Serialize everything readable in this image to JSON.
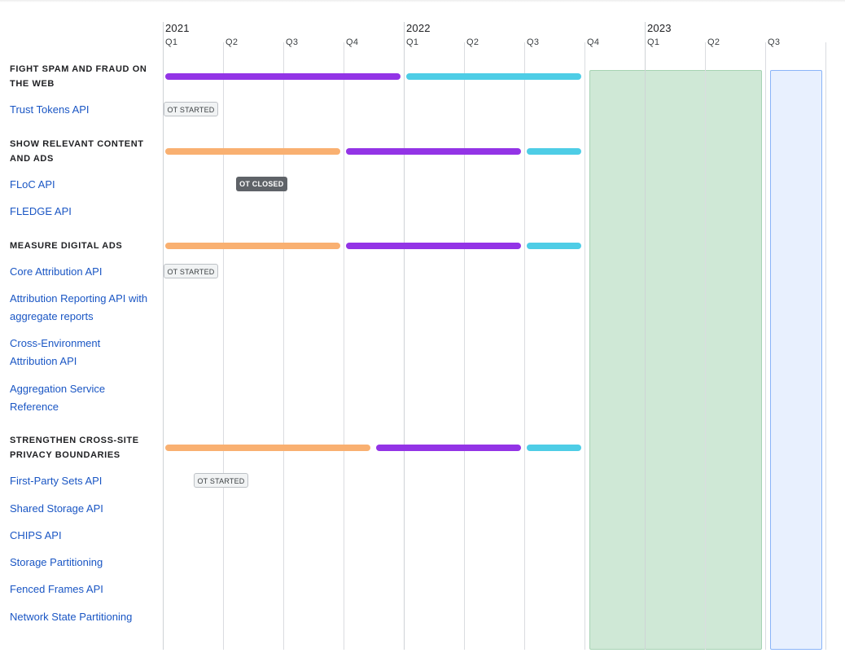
{
  "chart_data": {
    "type": "timeline",
    "years": [
      {
        "label": "2021",
        "start_index": 0
      },
      {
        "label": "2022",
        "start_index": 4
      },
      {
        "label": "2023",
        "start_index": 8
      }
    ],
    "quarters": [
      "Q1",
      "Q2",
      "Q3",
      "Q4",
      "Q1",
      "Q2",
      "Q3",
      "Q4",
      "Q1",
      "Q2",
      "Q3"
    ],
    "phase_colors": {
      "orange": "#f9b071",
      "purple": "#9334e6",
      "cyan": "#4ecde6"
    },
    "bands": [
      {
        "name": "green-band",
        "from": 7.05,
        "to": 9.95,
        "color": "#cfe8d6",
        "border": "#a6d3b3"
      },
      {
        "name": "blue-band",
        "from": 10.05,
        "to": 10.95,
        "color": "#e8f0fe",
        "border": "#8ab4f8"
      }
    ],
    "sections": [
      {
        "title": "FIGHT SPAM AND FRAUD ON THE WEB",
        "bars": [
          {
            "from": 0.0,
            "to": 3.95,
            "color": "#9334e6"
          },
          {
            "from": 4.0,
            "to": 6.95,
            "color": "#4ecde6"
          }
        ],
        "apis": [
          {
            "name": "Trust Tokens API",
            "badge": {
              "text": "OT STARTED",
              "at": 0.0,
              "type": "started"
            }
          }
        ]
      },
      {
        "title": "SHOW RELEVANT CONTENT AND ADS",
        "bars": [
          {
            "from": 0.0,
            "to": 2.95,
            "color": "#f9b071"
          },
          {
            "from": 3.0,
            "to": 5.95,
            "color": "#9334e6"
          },
          {
            "from": 6.0,
            "to": 6.95,
            "color": "#4ecde6"
          }
        ],
        "apis": [
          {
            "name": "FLoC API",
            "badge": {
              "text": "OT CLOSED",
              "at": 1.2,
              "type": "closed"
            }
          },
          {
            "name": "FLEDGE API"
          }
        ]
      },
      {
        "title": "MEASURE DIGITAL ADS",
        "bars": [
          {
            "from": 0.0,
            "to": 2.95,
            "color": "#f9b071"
          },
          {
            "from": 3.0,
            "to": 5.95,
            "color": "#9334e6"
          },
          {
            "from": 6.0,
            "to": 6.95,
            "color": "#4ecde6"
          }
        ],
        "apis": [
          {
            "name": "Core Attribution API",
            "badge": {
              "text": "OT STARTED",
              "at": 0.0,
              "type": "started"
            }
          },
          {
            "name": "Attribution Reporting API with aggregate reports"
          },
          {
            "name": "Cross-Environment Attribution API"
          },
          {
            "name": "Aggregation Service Reference"
          }
        ]
      },
      {
        "title": "STRENGTHEN CROSS-SITE PRIVACY BOUNDARIES",
        "bars": [
          {
            "from": 0.0,
            "to": 3.45,
            "color": "#f9b071"
          },
          {
            "from": 3.5,
            "to": 5.95,
            "color": "#9334e6"
          },
          {
            "from": 6.0,
            "to": 6.95,
            "color": "#4ecde6"
          }
        ],
        "apis": [
          {
            "name": "First-Party Sets API",
            "badge": {
              "text": "OT STARTED",
              "at": 0.5,
              "type": "started"
            }
          },
          {
            "name": "Shared Storage API"
          },
          {
            "name": "CHIPS API"
          },
          {
            "name": "Storage Partitioning"
          },
          {
            "name": "Fenced Frames API"
          },
          {
            "name": "Network State Partitioning"
          }
        ]
      }
    ]
  }
}
